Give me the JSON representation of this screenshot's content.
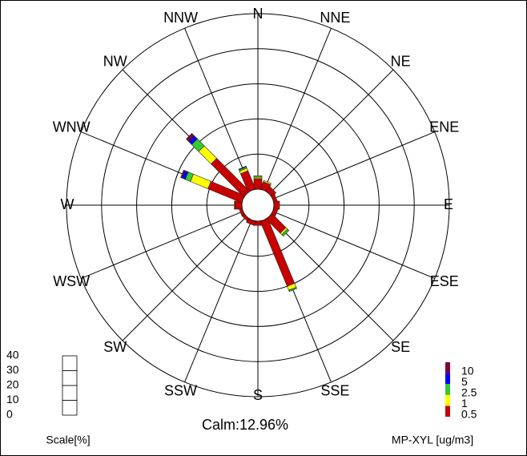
{
  "chart_data": {
    "type": "windrose",
    "categories": [
      "N",
      "NNE",
      "NE",
      "ENE",
      "E",
      "ESE",
      "SE",
      "SSE",
      "S",
      "SSW",
      "SW",
      "WSW",
      "W",
      "WNW",
      "NW",
      "NNW"
    ],
    "series": [
      {
        "name": "0.5",
        "color": "#c80000",
        "values": [
          1.5,
          1.1,
          0.8,
          0.5,
          0.8,
          0.6,
          2.8,
          10.0,
          0.6,
          0.6,
          0.4,
          0.4,
          1.0,
          5.2,
          6.6,
          2.8
        ]
      },
      {
        "name": "1",
        "color": "#ffff00",
        "values": [
          0.2,
          0.2,
          0,
          0,
          0,
          0,
          0.3,
          0.6,
          0,
          0,
          0,
          0,
          0.1,
          2.7,
          2.5,
          0.4
        ]
      },
      {
        "name": "2.5",
        "color": "#33cc33",
        "values": [
          0.2,
          0,
          0,
          0,
          0,
          0,
          0.3,
          0.2,
          0,
          0,
          0,
          0,
          0,
          0.8,
          1.4,
          0.2
        ]
      },
      {
        "name": "5",
        "color": "#0000ff",
        "values": [
          0,
          0,
          0,
          0,
          0,
          0,
          0,
          0,
          0,
          0,
          0,
          0,
          0,
          0.5,
          0.6,
          0.1
        ]
      },
      {
        "name": "10",
        "color": "#800040",
        "values": [
          0,
          0,
          0,
          0,
          0,
          0,
          0,
          0,
          0,
          0,
          0,
          0,
          0,
          0.2,
          0.5,
          0
        ]
      }
    ],
    "rlim": [
      0,
      25
    ],
    "rticks": [
      5,
      10,
      15,
      20,
      25
    ],
    "calm_label": "Calm:12.96%",
    "scale": {
      "title": "Scale[%]",
      "lim": [
        0,
        40
      ],
      "ticks": [
        0,
        10,
        20,
        30,
        40
      ]
    },
    "legend_title": "MP-XYL [ug/m3]"
  }
}
